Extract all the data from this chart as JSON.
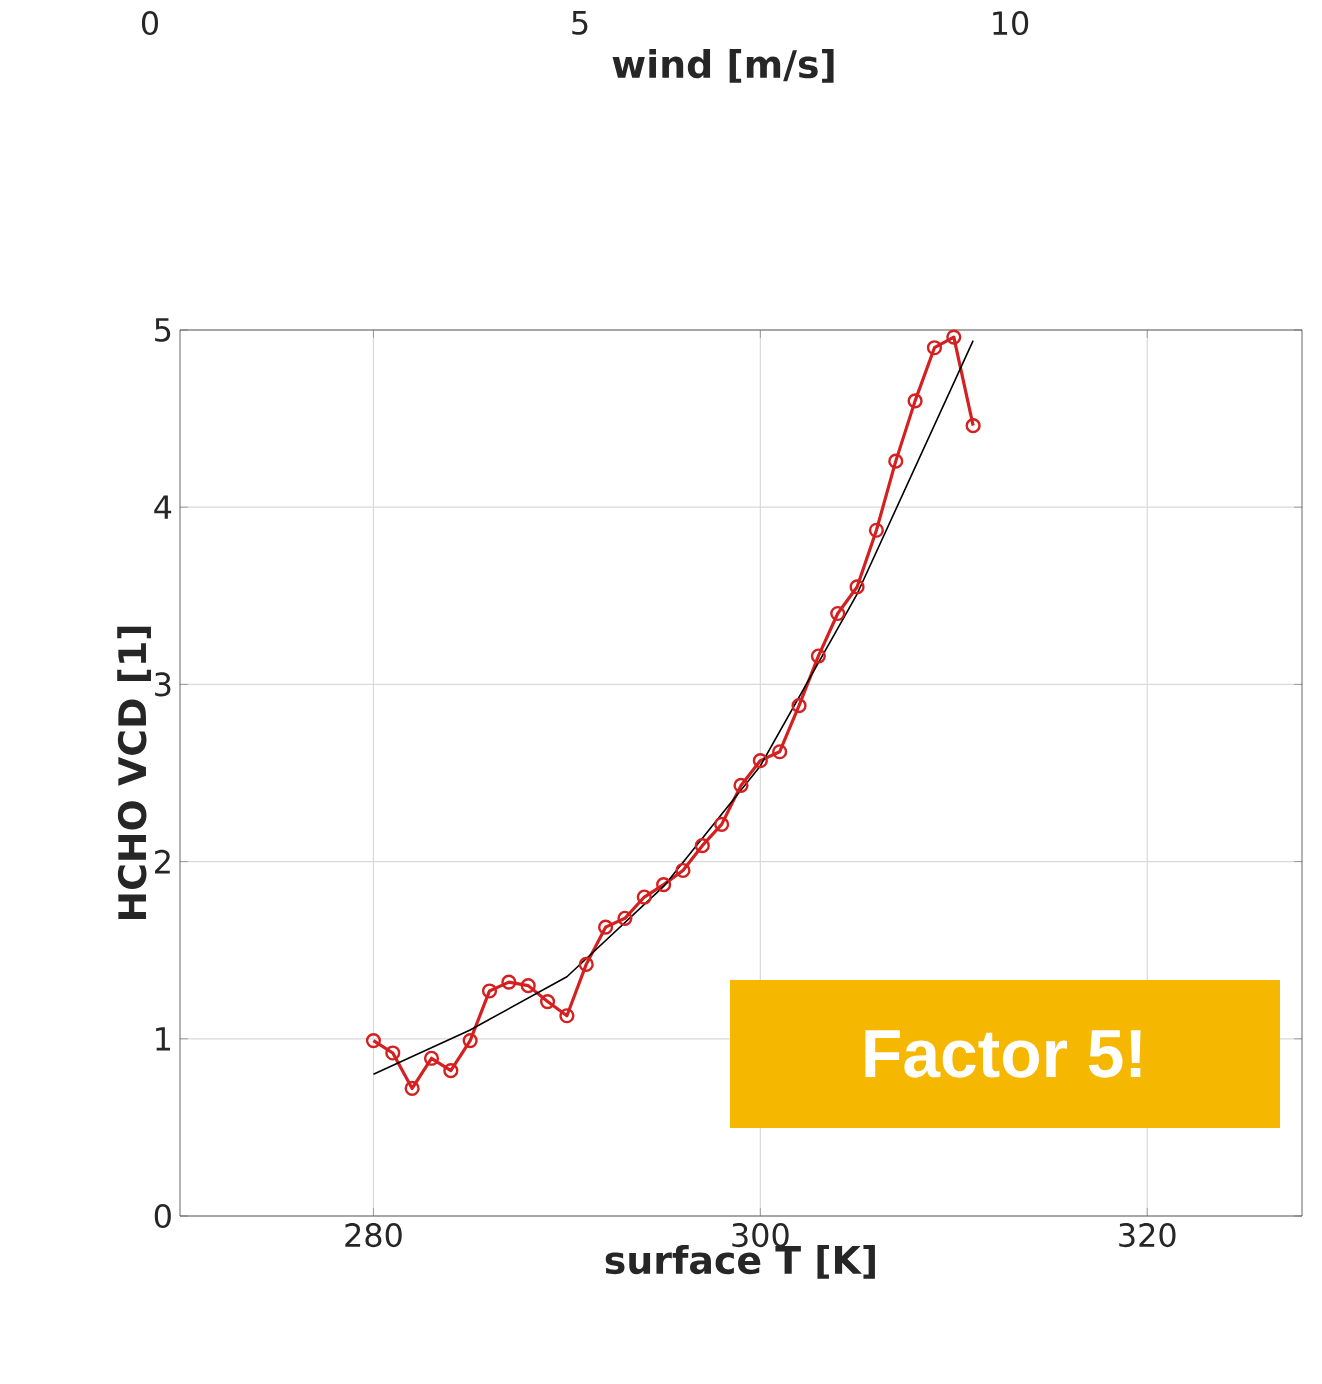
{
  "chart_data": [
    {
      "type": "other",
      "xlabel": "wind [m/s]",
      "annotations": [
        "0",
        "5",
        "10"
      ]
    },
    {
      "type": "line",
      "xlabel": "surface T [K]",
      "ylabel": "HCHO VCD [1]",
      "xlim": [
        270,
        328
      ],
      "ylim": [
        0,
        5
      ],
      "xticks": [
        280,
        300,
        320
      ],
      "yticks": [
        0,
        1,
        2,
        3,
        4,
        5
      ],
      "grid": true,
      "marker": "circle",
      "x": [
        280,
        281,
        282,
        283,
        284,
        285,
        286,
        287,
        288,
        289,
        290,
        291,
        292,
        293,
        294,
        295,
        296,
        297,
        298,
        299,
        300,
        301,
        302,
        303,
        304,
        305,
        306,
        307,
        308,
        309,
        310,
        311
      ],
      "series": [
        {
          "color": "#d42020",
          "values": [
            0.99,
            0.92,
            0.72,
            0.89,
            0.82,
            0.99,
            1.27,
            1.32,
            1.3,
            1.21,
            1.13,
            1.42,
            1.63,
            1.68,
            1.8,
            1.87,
            1.95,
            2.09,
            2.21,
            2.43,
            2.57,
            2.62,
            2.88,
            3.16,
            3.4,
            3.55,
            3.87,
            4.26,
            4.6,
            4.9,
            4.96,
            4.46
          ]
        },
        {
          "type": "line",
          "color": "#000000",
          "marker": "none",
          "x": [
            280,
            285,
            290,
            295,
            300,
            305,
            311
          ],
          "values": [
            0.8,
            1.05,
            1.35,
            1.86,
            2.54,
            3.51,
            4.94
          ]
        }
      ],
      "annotations": [
        "Factor 5!"
      ]
    }
  ]
}
